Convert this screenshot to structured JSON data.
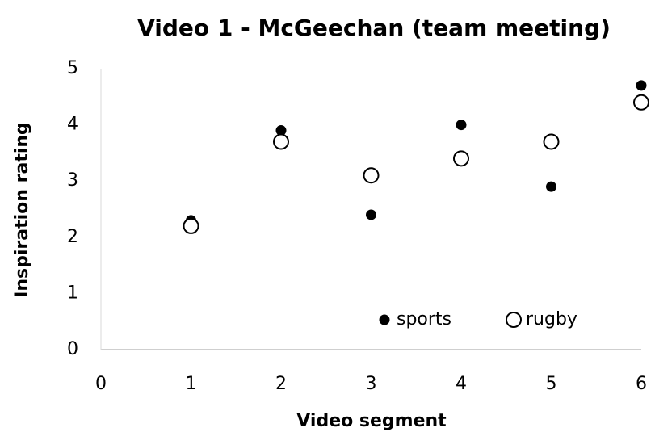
{
  "chart_data": {
    "type": "scatter",
    "title": "Video 1 - McGeechan (team meeting)",
    "x_label": "Video segment",
    "y_label": "Inspiration rating",
    "x": [
      1,
      2,
      3,
      4,
      5,
      6
    ],
    "series": [
      {
        "name": "sports",
        "color": "#000000",
        "marker": "filled",
        "values": [
          2.3,
          3.9,
          2.4,
          4.0,
          2.9,
          4.7
        ]
      },
      {
        "name": "rugby",
        "color": "#000000",
        "marker": "open",
        "values": [
          2.2,
          3.7,
          3.1,
          3.4,
          3.7,
          4.4
        ]
      }
    ],
    "xlim": [
      0,
      6
    ],
    "ylim": [
      0,
      5
    ],
    "xticks": [
      0,
      1,
      2,
      3,
      4,
      5,
      6
    ],
    "yticks": [
      0,
      1,
      2,
      3,
      4,
      5
    ],
    "grid": false,
    "legend": "lower right"
  }
}
